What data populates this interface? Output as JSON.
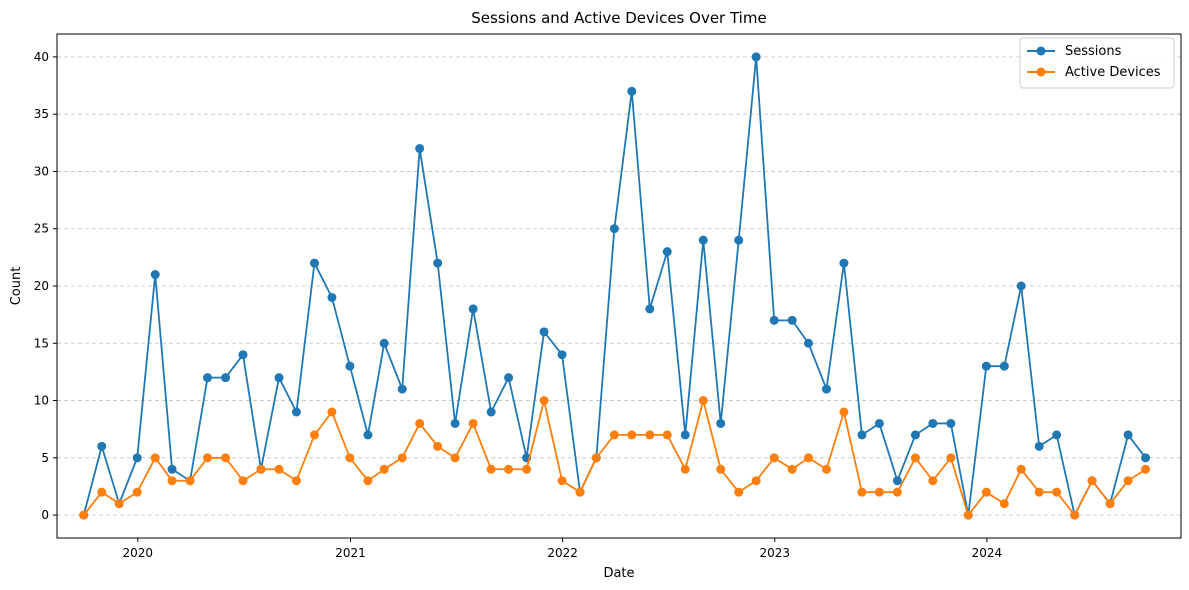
{
  "chart_data": {
    "type": "line",
    "title": "Sessions and Active Devices Over Time",
    "xlabel": "Date",
    "ylabel": "Count",
    "x_ticks": [
      "2020",
      "2021",
      "2022",
      "2023",
      "2024"
    ],
    "y_ticks": [
      0,
      5,
      10,
      15,
      20,
      25,
      30,
      35,
      40
    ],
    "ylim": [
      -2,
      42
    ],
    "xlim": [
      "2019-08-15",
      "2024-11-30"
    ],
    "grid": "y-dashed",
    "legend_position": "top-right",
    "x": [
      "2019-09-30",
      "2019-10-31",
      "2019-11-30",
      "2019-12-31",
      "2020-01-31",
      "2020-02-29",
      "2020-03-31",
      "2020-04-30",
      "2020-05-31",
      "2020-06-30",
      "2020-07-31",
      "2020-08-31",
      "2020-09-30",
      "2020-10-31",
      "2020-11-30",
      "2020-12-31",
      "2021-01-31",
      "2021-02-28",
      "2021-03-31",
      "2021-04-30",
      "2021-05-31",
      "2021-06-30",
      "2021-07-31",
      "2021-08-31",
      "2021-09-30",
      "2021-10-31",
      "2021-11-30",
      "2021-12-31",
      "2022-01-31",
      "2022-02-28",
      "2022-03-31",
      "2022-04-30",
      "2022-05-31",
      "2022-06-30",
      "2022-07-31",
      "2022-08-31",
      "2022-09-30",
      "2022-10-31",
      "2022-11-30",
      "2022-12-31",
      "2023-01-31",
      "2023-02-28",
      "2023-03-31",
      "2023-04-30",
      "2023-05-31",
      "2023-06-30",
      "2023-07-31",
      "2023-08-31",
      "2023-09-30",
      "2023-10-31",
      "2023-11-30",
      "2023-12-31",
      "2024-01-31",
      "2024-02-29",
      "2024-03-31",
      "2024-04-30",
      "2024-05-31",
      "2024-06-30",
      "2024-07-31",
      "2024-08-31",
      "2024-09-30"
    ],
    "series": [
      {
        "name": "Sessions",
        "color": "#1f77b4",
        "values": [
          0,
          6,
          1,
          5,
          21,
          4,
          3,
          12,
          12,
          14,
          4,
          12,
          9,
          22,
          19,
          13,
          7,
          15,
          11,
          32,
          22,
          8,
          18,
          9,
          12,
          5,
          16,
          14,
          2,
          5,
          25,
          37,
          18,
          23,
          7,
          24,
          8,
          24,
          40,
          17,
          17,
          15,
          11,
          22,
          7,
          8,
          3,
          7,
          8,
          8,
          0,
          13,
          13,
          20,
          6,
          7,
          0,
          3,
          1,
          7,
          5
        ]
      },
      {
        "name": "Active Devices",
        "color": "#ff7f0e",
        "values": [
          0,
          2,
          1,
          2,
          5,
          3,
          3,
          5,
          5,
          3,
          4,
          4,
          3,
          7,
          9,
          5,
          3,
          4,
          5,
          8,
          6,
          5,
          8,
          4,
          4,
          4,
          10,
          3,
          2,
          5,
          7,
          7,
          7,
          7,
          4,
          10,
          4,
          2,
          3,
          5,
          4,
          5,
          4,
          9,
          2,
          2,
          2,
          5,
          3,
          5,
          0,
          2,
          1,
          4,
          2,
          2,
          0,
          3,
          1,
          3,
          4
        ]
      }
    ]
  }
}
